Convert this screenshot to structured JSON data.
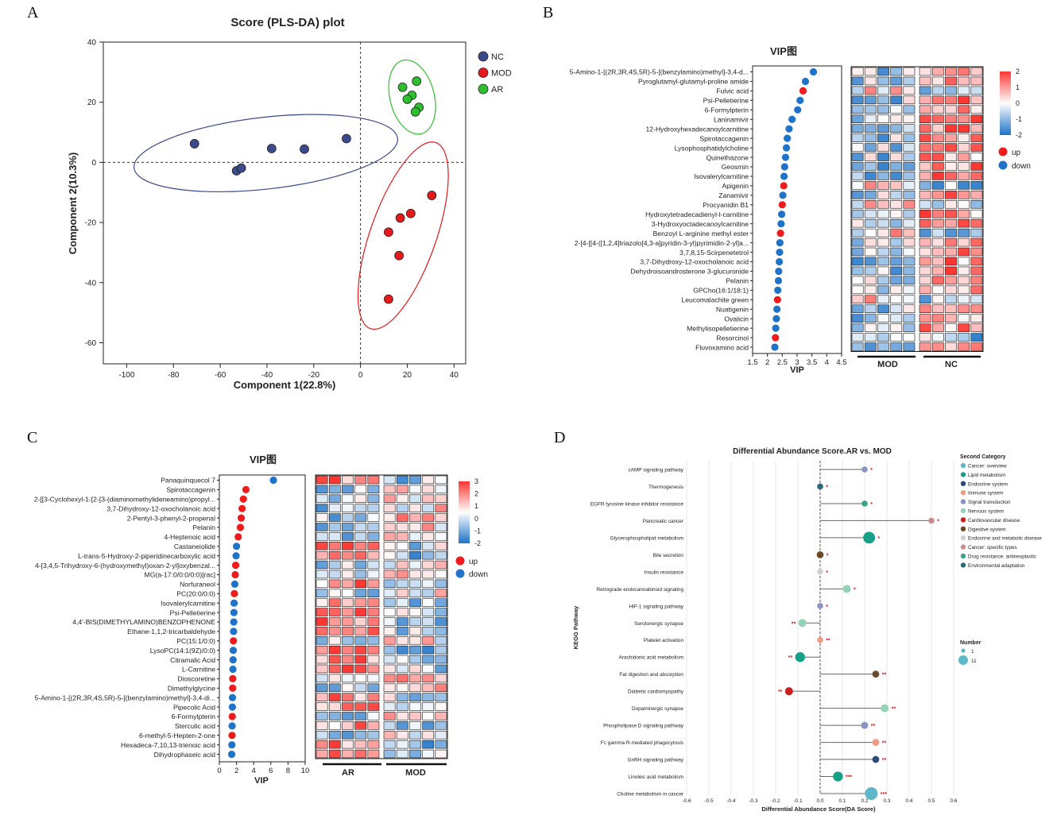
{
  "panels": [
    {
      "letter": "A"
    },
    {
      "letter": "B"
    },
    {
      "letter": "C"
    },
    {
      "letter": "D"
    }
  ],
  "chart_data": [
    {
      "id": "A",
      "type": "scatter",
      "title": "Score (PLS-DA) plot",
      "xlabel": "Component 1(22.8%)",
      "ylabel": "Component 2(10.3%)",
      "xlim": [
        -110,
        45
      ],
      "ylim": [
        -67,
        40
      ],
      "xticks": [
        -100,
        -80,
        -60,
        -40,
        -20,
        0,
        20,
        40
      ],
      "yticks": [
        -60,
        -40,
        -20,
        0,
        20,
        40
      ],
      "legend_position": "top-right",
      "series": [
        {
          "name": "NC",
          "color": "#3a4a8c",
          "points": [
            [
              -71,
              6.2
            ],
            [
              -53,
              -2.8
            ],
            [
              -51,
              -1.9
            ],
            [
              -38,
              4.6
            ],
            [
              -24,
              4.4
            ],
            [
              -6,
              7.9
            ]
          ]
        },
        {
          "name": "MOD",
          "color": "#e41a1c",
          "points": [
            [
              30.5,
              -11
            ],
            [
              21.5,
              -17
            ],
            [
              17,
              -18.5
            ],
            [
              12,
              -23.2
            ],
            [
              16.5,
              -31
            ],
            [
              12,
              -45.5
            ]
          ]
        },
        {
          "name": "AR",
          "color": "#2fbe2f",
          "points": [
            [
              24,
              27
            ],
            [
              18,
              25
            ],
            [
              22,
              22.3
            ],
            [
              20,
              21
            ],
            [
              25,
              18.3
            ],
            [
              23.5,
              16.8
            ]
          ]
        }
      ]
    },
    {
      "id": "B",
      "type": "scatter",
      "title": "VIP图",
      "xlabel": "VIP",
      "xlim": [
        1.5,
        4.5
      ],
      "xticks": [
        "1.5",
        "2",
        "2.5",
        "3",
        "3.5",
        "4",
        "4.5"
      ],
      "legend": [
        "up",
        "down"
      ],
      "up_color": "#ee1c1c",
      "down_color": "#1f73c9",
      "heatmap_groups": [
        "MOD",
        "NC"
      ],
      "colorbar_ticks": [
        "2",
        "1",
        "0",
        "-1",
        "-2"
      ],
      "rows": [
        {
          "name": "5-Amino-1-[(2R,3R,4S,5R)-5-[(benzylamino)methyl]-3,4-d...",
          "vip": 3.55,
          "dir": "down"
        },
        {
          "name": "Pyroglutamyl-glutamyl-proline amide",
          "vip": 3.28,
          "dir": "down"
        },
        {
          "name": "Fulvic acid",
          "vip": 3.2,
          "dir": "up"
        },
        {
          "name": "Psi-Pelletierine",
          "vip": 3.1,
          "dir": "down"
        },
        {
          "name": "6-Formylpterin",
          "vip": 3.02,
          "dir": "down"
        },
        {
          "name": "Laninamivir",
          "vip": 2.83,
          "dir": "down"
        },
        {
          "name": "12-Hydroxyhexadecanoylcarnitine",
          "vip": 2.73,
          "dir": "down"
        },
        {
          "name": "Spirotaccagenin",
          "vip": 2.67,
          "dir": "down"
        },
        {
          "name": "Lysophosphatidylcholine",
          "vip": 2.64,
          "dir": "down"
        },
        {
          "name": "Quinethazone",
          "vip": 2.61,
          "dir": "down"
        },
        {
          "name": "Geosmin",
          "vip": 2.58,
          "dir": "down"
        },
        {
          "name": "Isovalerylcarnitine",
          "vip": 2.56,
          "dir": "down"
        },
        {
          "name": "Apigenin",
          "vip": 2.55,
          "dir": "up"
        },
        {
          "name": "Zanamivir",
          "vip": 2.52,
          "dir": "down"
        },
        {
          "name": "Procyanidin B1",
          "vip": 2.5,
          "dir": "up"
        },
        {
          "name": "Hydroxytetradecadienyl-l-carnitine",
          "vip": 2.48,
          "dir": "down"
        },
        {
          "name": "3-Hydroxyoctadecanoylcarnitine",
          "vip": 2.46,
          "dir": "down"
        },
        {
          "name": "Benzoyl L-arginine methyl ester",
          "vip": 2.44,
          "dir": "up"
        },
        {
          "name": "2-[4-[[4-([1,2,4]triazolo[4,3-a]pyridin-3-yl)pyrimidin-2-yl]a...",
          "vip": 2.42,
          "dir": "down"
        },
        {
          "name": "3,7,8,15-Scirpenetetrol",
          "vip": 2.41,
          "dir": "down"
        },
        {
          "name": "3,7-Dihydroxy-12-oxocholanoic acid",
          "vip": 2.4,
          "dir": "down"
        },
        {
          "name": "Dehydroisoandrosterone 3-glucuronide",
          "vip": 2.38,
          "dir": "down"
        },
        {
          "name": "Pelanin",
          "vip": 2.37,
          "dir": "down"
        },
        {
          "name": "GPCho(16:1/18:1)",
          "vip": 2.35,
          "dir": "down"
        },
        {
          "name": "Leucomalachite green",
          "vip": 2.34,
          "dir": "up"
        },
        {
          "name": "Nuatigenin",
          "vip": 2.32,
          "dir": "down"
        },
        {
          "name": "Ovalicin",
          "vip": 2.3,
          "dir": "down"
        },
        {
          "name": "Methylisopelletierine",
          "vip": 2.28,
          "dir": "down"
        },
        {
          "name": "Resorcinol",
          "vip": 2.27,
          "dir": "up"
        },
        {
          "name": "Fluvoxamino acid",
          "vip": 2.25,
          "dir": "down"
        }
      ]
    },
    {
      "id": "C",
      "type": "scatter",
      "title": "VIP图",
      "xlabel": "VIP",
      "xlim": [
        0,
        10
      ],
      "xticks": [
        "0",
        "2",
        "4",
        "6",
        "8",
        "10"
      ],
      "legend": [
        "up",
        "down"
      ],
      "up_color": "#ee1c1c",
      "down_color": "#1f73c9",
      "heatmap_groups": [
        "AR",
        "MOD"
      ],
      "colorbar_ticks": [
        "3",
        "2",
        "1",
        "0",
        "-1",
        "-2"
      ],
      "rows": [
        {
          "name": "Panaquinquecol 7",
          "vip": 6.3,
          "dir": "down"
        },
        {
          "name": "Spirotaccagenin",
          "vip": 3.1,
          "dir": "up"
        },
        {
          "name": "2-[[3-Cyclohexyl-1-[2-[3-(diaminomethylideneamino)propyl...",
          "vip": 2.8,
          "dir": "up"
        },
        {
          "name": "3,7-Dihydroxy-12-oxocholanoic acid",
          "vip": 2.65,
          "dir": "up"
        },
        {
          "name": "2-Pentyl-3-phenyl-2-propenal",
          "vip": 2.55,
          "dir": "up"
        },
        {
          "name": "Pelanin",
          "vip": 2.45,
          "dir": "up"
        },
        {
          "name": "4-Heptenoic acid",
          "vip": 2.2,
          "dir": "up"
        },
        {
          "name": "Castaneiolide",
          "vip": 2.0,
          "dir": "down"
        },
        {
          "name": "L-trans-5-Hydroxy-2-piperidinecarboxylic acid",
          "vip": 1.95,
          "dir": "down"
        },
        {
          "name": "4-[3,4,5-Trihydroxy-6-(hydroxymethyl)oxan-2-yl]oxybenzal...",
          "vip": 1.9,
          "dir": "up"
        },
        {
          "name": "MG(a-17:0/0:0/0:0)[rac]",
          "vip": 1.85,
          "dir": "up"
        },
        {
          "name": "Norfuraneol",
          "vip": 1.8,
          "dir": "down"
        },
        {
          "name": "PC(20:0/0:0)",
          "vip": 1.75,
          "dir": "up"
        },
        {
          "name": "Isovalerylcarnitine",
          "vip": 1.72,
          "dir": "down"
        },
        {
          "name": "Psi-Pelletierine",
          "vip": 1.7,
          "dir": "down"
        },
        {
          "name": "4,4'-BIS(DIMETHYLAMINO)BENZOPHENONE",
          "vip": 1.68,
          "dir": "down"
        },
        {
          "name": "Ethane-1,1,2-tricarbaldehyde",
          "vip": 1.66,
          "dir": "down"
        },
        {
          "name": "PC(15:1/0:0)",
          "vip": 1.64,
          "dir": "up"
        },
        {
          "name": "LysoPC(14:1(9Z)/0:0)",
          "vip": 1.62,
          "dir": "down"
        },
        {
          "name": "Citramalic Acid",
          "vip": 1.6,
          "dir": "down"
        },
        {
          "name": "L-Carnitine",
          "vip": 1.58,
          "dir": "down"
        },
        {
          "name": "Dioscoretine",
          "vip": 1.56,
          "dir": "up"
        },
        {
          "name": "Dimethylglycine",
          "vip": 1.55,
          "dir": "up"
        },
        {
          "name": "5-Amino-1-[(2R,3R,4S,5R)-5-[(benzylamino)methyl]-3,4-di...",
          "vip": 1.53,
          "dir": "down"
        },
        {
          "name": "Pipecolic Acid",
          "vip": 1.52,
          "dir": "down"
        },
        {
          "name": "6-Formylpterin",
          "vip": 1.5,
          "dir": "up"
        },
        {
          "name": "Sterculic acid",
          "vip": 1.49,
          "dir": "down"
        },
        {
          "name": "6-methyl-5-Hepten-2-one",
          "vip": 1.48,
          "dir": "up"
        },
        {
          "name": "Hexadeca-7,10,13-trienoic acid",
          "vip": 1.46,
          "dir": "down"
        },
        {
          "name": "Dihydrophaseic acid",
          "vip": 1.44,
          "dir": "down"
        }
      ]
    },
    {
      "id": "D",
      "type": "scatter",
      "title": "Differential Abundance Score.AR vs. MOD",
      "xlabel": "Differential Abundance Score(DA Score)",
      "ylabel": "KEGG Pathway",
      "xlim": [
        -0.6,
        0.6
      ],
      "xticks": [
        "-0.6",
        "-0.5",
        "-0.4",
        "-0.3",
        "-0.2",
        "-0.1",
        "0.0",
        "0.1",
        "0.2",
        "0.3",
        "0.4",
        "0.5",
        "0.6"
      ],
      "legend_title_category": "Second Category",
      "categories": [
        {
          "name": "Cancer: overview",
          "color": "#5fb8c9"
        },
        {
          "name": "Lipid metabolism",
          "color": "#16a085"
        },
        {
          "name": "Endocrine system",
          "color": "#2e4a7d"
        },
        {
          "name": "Immune system",
          "color": "#ef9a82"
        },
        {
          "name": "Signal transduction",
          "color": "#8a93c4"
        },
        {
          "name": "Nervous system",
          "color": "#94d3b8"
        },
        {
          "name": "Cardiovascular disease",
          "color": "#c81e1e"
        },
        {
          "name": "Digestive system",
          "color": "#6b4a2a"
        },
        {
          "name": "Endocrine and metabolic disease",
          "color": "#cfcfcf"
        },
        {
          "name": "Cancer: specific types",
          "color": "#c98d8d"
        },
        {
          "name": "Drug resistance: antineoplastic",
          "color": "#3aa38a"
        },
        {
          "name": "Environmental adaptation",
          "color": "#2a6a7a"
        }
      ],
      "legend_title_number": "Number",
      "number_legend": [
        "1",
        "11"
      ],
      "pathways": [
        {
          "name": "cAMP signaling pathway",
          "score": 0.2,
          "cat": 4,
          "size": 2,
          "sig": "*"
        },
        {
          "name": "Thermogenesis",
          "score": 0.0,
          "cat": 11,
          "size": 2,
          "sig": "*"
        },
        {
          "name": "EGFR tyrosine kinase inhibitor resistance",
          "score": 0.2,
          "cat": 10,
          "size": 2,
          "sig": "*"
        },
        {
          "name": "Pancreatic cancer",
          "score": 0.5,
          "cat": 9,
          "size": 2,
          "sig": "*"
        },
        {
          "name": "Glycerophospholipid metabolism",
          "score": 0.22,
          "cat": 1,
          "size": 8,
          "sig": "*"
        },
        {
          "name": "Bile secretion",
          "score": 0.0,
          "cat": 7,
          "size": 3,
          "sig": "*"
        },
        {
          "name": "Insulin resistance",
          "score": 0.0,
          "cat": 8,
          "size": 2,
          "sig": "*"
        },
        {
          "name": "Retrograde endocannabinoid signaling",
          "score": 0.12,
          "cat": 5,
          "size": 4,
          "sig": "*"
        },
        {
          "name": "HIF-1 signaling pathway",
          "score": 0.0,
          "cat": 4,
          "size": 2,
          "sig": "*"
        },
        {
          "name": "Serotonergic synapse",
          "score": -0.08,
          "cat": 5,
          "size": 4,
          "sig": "**"
        },
        {
          "name": "Platelet activation",
          "score": 0.0,
          "cat": 3,
          "size": 2,
          "sig": "**"
        },
        {
          "name": "Arachidonic acid metabolism",
          "score": -0.09,
          "cat": 1,
          "size": 6,
          "sig": "**"
        },
        {
          "name": "Fat digestion and absorption",
          "score": 0.25,
          "cat": 7,
          "size": 3,
          "sig": "**"
        },
        {
          "name": "Diabetic cardiomyopathy",
          "score": -0.14,
          "cat": 6,
          "size": 4,
          "sig": "**"
        },
        {
          "name": "Dopaminergic synapse",
          "score": 0.29,
          "cat": 5,
          "size": 4,
          "sig": "**"
        },
        {
          "name": "Phospholipase D signaling pathway",
          "score": 0.2,
          "cat": 4,
          "size": 3,
          "sig": "**"
        },
        {
          "name": "Fc gamma R-mediated phagocytosis",
          "score": 0.25,
          "cat": 3,
          "size": 3,
          "sig": "**"
        },
        {
          "name": "GnRH signaling pathway",
          "score": 0.25,
          "cat": 2,
          "size": 3,
          "sig": "**"
        },
        {
          "name": "Linoleic acid metabolism",
          "score": 0.08,
          "cat": 1,
          "size": 6,
          "sig": "***"
        },
        {
          "name": "Choline metabolism in cancer",
          "score": 0.23,
          "cat": 0,
          "size": 9,
          "sig": "***"
        }
      ]
    }
  ]
}
